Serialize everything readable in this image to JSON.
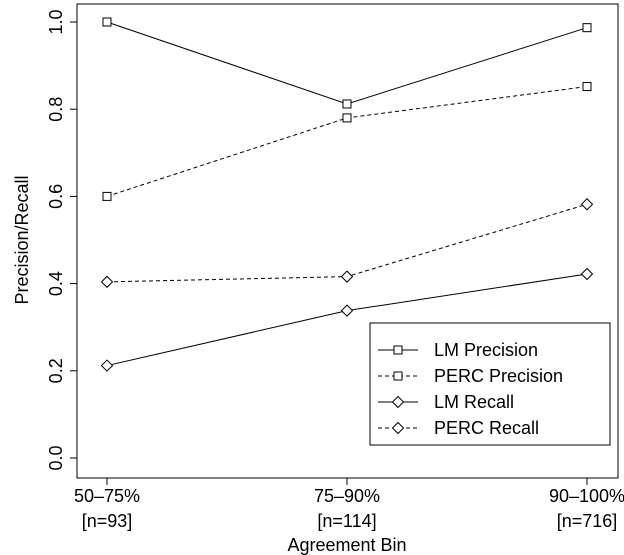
{
  "chart_data": {
    "type": "line",
    "title": "",
    "xlabel": "Agreement Bin",
    "ylabel": "Precision/Recall",
    "ylim": [
      0.0,
      1.0
    ],
    "yticks": [
      0.0,
      0.2,
      0.4,
      0.6,
      0.8,
      1.0
    ],
    "ytick_labels": [
      "0.0",
      "0.2",
      "0.4",
      "0.6",
      "0.8",
      "1.0"
    ],
    "categories": [
      {
        "range": "50–75%",
        "count": "[n=93]"
      },
      {
        "range": "75–90%",
        "count": "[n=114]"
      },
      {
        "range": "90–100%",
        "count": "[n=716]"
      }
    ],
    "series": [
      {
        "name": "LM Precision",
        "values": [
          1.0,
          0.812,
          0.987
        ],
        "line": "solid",
        "marker": "square"
      },
      {
        "name": "PERC Precision",
        "values": [
          0.6,
          0.78,
          0.852
        ],
        "line": "dashed",
        "marker": "square"
      },
      {
        "name": "LM Recall",
        "values": [
          0.212,
          0.338,
          0.422
        ],
        "line": "solid",
        "marker": "diamond"
      },
      {
        "name": "PERC Recall",
        "values": [
          0.404,
          0.416,
          0.582
        ],
        "line": "dashed",
        "marker": "diamond"
      }
    ],
    "grid": false,
    "legend_position": "bottom-right",
    "colors": {
      "line": "#000000",
      "background": "#ffffff"
    }
  }
}
